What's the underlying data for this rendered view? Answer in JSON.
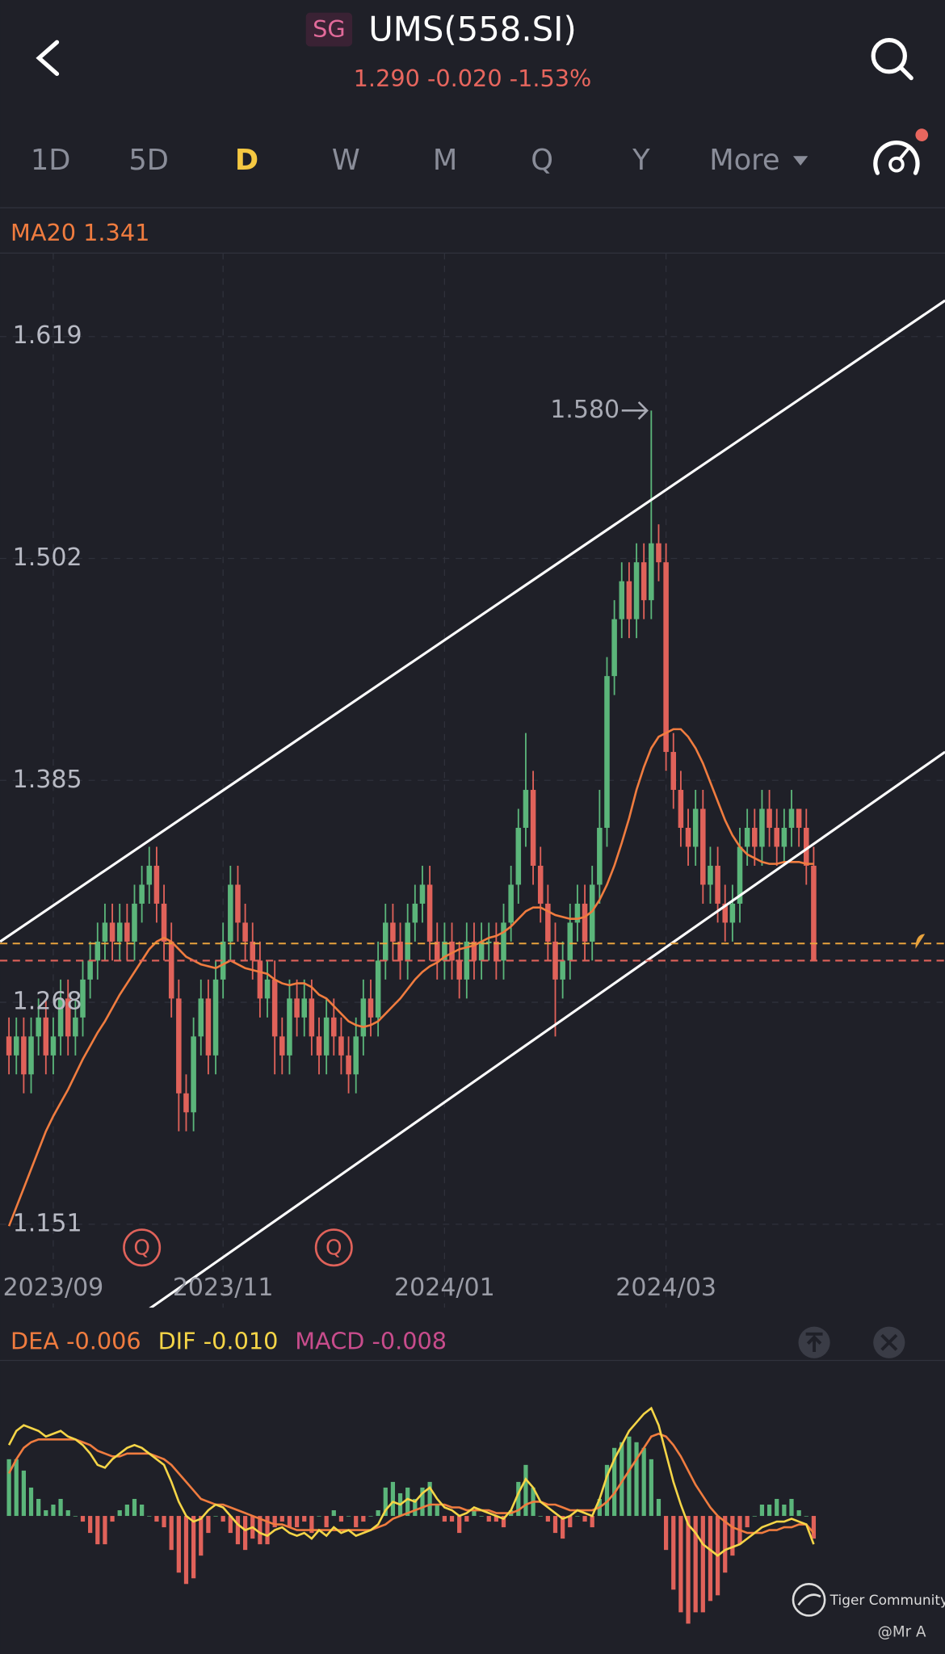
{
  "header": {
    "badge": "SG",
    "title": "UMS(558.SI)",
    "quote": "1.290 -0.020 -1.53%"
  },
  "tabs": [
    "1D",
    "5D",
    "D",
    "W",
    "M",
    "Q",
    "Y",
    "More"
  ],
  "active_tab": 2,
  "chart_data": [
    {
      "type": "candlestick",
      "indicator": "MA20 1.341",
      "up_color": "#5bb57a",
      "down_color": "#e0625a",
      "ylim": [
        1.107,
        1.663
      ],
      "yticks": [
        1.151,
        1.268,
        1.385,
        1.502,
        1.619
      ],
      "grid": true,
      "categories": [
        null,
        null,
        null,
        null,
        null,
        null,
        "2023/09",
        null,
        null,
        null,
        null,
        null,
        null,
        null,
        null,
        null,
        null,
        null,
        null,
        null,
        null,
        null,
        null,
        null,
        null,
        null,
        null,
        null,
        null,
        "2023/11",
        null,
        null,
        null,
        null,
        null,
        null,
        null,
        null,
        null,
        null,
        null,
        null,
        null,
        null,
        null,
        null,
        null,
        null,
        null,
        null,
        null,
        null,
        null,
        null,
        null,
        null,
        null,
        null,
        null,
        "2024/01",
        null,
        null,
        null,
        null,
        null,
        null,
        null,
        null,
        null,
        null,
        null,
        null,
        null,
        null,
        null,
        null,
        null,
        null,
        null,
        null,
        null,
        null,
        null,
        null,
        null,
        null,
        null,
        null,
        null,
        "2024/03",
        null,
        null,
        null,
        null,
        null,
        null,
        null,
        null,
        null,
        null,
        null,
        null,
        null,
        null,
        null,
        null,
        null,
        null,
        null,
        null
      ],
      "open": [
        1.25,
        1.24,
        1.25,
        1.23,
        1.25,
        1.26,
        1.24,
        1.25,
        1.27,
        1.25,
        1.26,
        1.28,
        1.29,
        1.3,
        1.31,
        1.3,
        1.31,
        1.3,
        1.32,
        1.33,
        1.34,
        1.32,
        1.3,
        1.27,
        1.22,
        1.21,
        1.25,
        1.27,
        1.24,
        1.28,
        1.3,
        1.33,
        1.31,
        1.3,
        1.29,
        1.27,
        1.28,
        1.25,
        1.24,
        1.27,
        1.26,
        1.27,
        1.25,
        1.24,
        1.26,
        1.25,
        1.24,
        1.23,
        1.25,
        1.27,
        1.26,
        1.29,
        1.31,
        1.3,
        1.29,
        1.31,
        1.32,
        1.33,
        1.3,
        1.29,
        1.3,
        1.29,
        1.28,
        1.3,
        1.29,
        1.3,
        1.3,
        1.29,
        1.31,
        1.33,
        1.36,
        1.38,
        1.34,
        1.32,
        1.3,
        1.28,
        1.29,
        1.31,
        1.32,
        1.3,
        1.33,
        1.36,
        1.44,
        1.47,
        1.49,
        1.47,
        1.5,
        1.48,
        1.51,
        1.5,
        1.4,
        1.38,
        1.36,
        1.35,
        1.37,
        1.33,
        1.34,
        1.32,
        1.31,
        1.32,
        1.35,
        1.36,
        1.35,
        1.37,
        1.36,
        1.35,
        1.36,
        1.37,
        1.36,
        1.34
      ],
      "high": [
        1.26,
        1.26,
        1.26,
        1.26,
        1.27,
        1.27,
        1.26,
        1.28,
        1.28,
        1.27,
        1.29,
        1.3,
        1.31,
        1.32,
        1.32,
        1.32,
        1.32,
        1.33,
        1.34,
        1.35,
        1.35,
        1.33,
        1.31,
        1.28,
        1.23,
        1.26,
        1.28,
        1.28,
        1.29,
        1.31,
        1.34,
        1.34,
        1.32,
        1.31,
        1.3,
        1.29,
        1.29,
        1.26,
        1.28,
        1.28,
        1.28,
        1.28,
        1.26,
        1.27,
        1.27,
        1.26,
        1.25,
        1.26,
        1.28,
        1.28,
        1.3,
        1.32,
        1.32,
        1.31,
        1.32,
        1.33,
        1.34,
        1.34,
        1.31,
        1.31,
        1.31,
        1.3,
        1.31,
        1.31,
        1.31,
        1.31,
        1.31,
        1.32,
        1.34,
        1.37,
        1.41,
        1.39,
        1.35,
        1.33,
        1.31,
        1.3,
        1.32,
        1.33,
        1.33,
        1.34,
        1.38,
        1.45,
        1.48,
        1.5,
        1.5,
        1.51,
        1.51,
        1.58,
        1.52,
        1.51,
        1.41,
        1.39,
        1.37,
        1.38,
        1.38,
        1.35,
        1.35,
        1.33,
        1.33,
        1.36,
        1.37,
        1.37,
        1.38,
        1.38,
        1.37,
        1.37,
        1.38,
        1.37,
        1.37,
        1.35
      ],
      "low": [
        1.23,
        1.23,
        1.22,
        1.22,
        1.24,
        1.23,
        1.23,
        1.24,
        1.24,
        1.24,
        1.25,
        1.27,
        1.28,
        1.29,
        1.29,
        1.29,
        1.29,
        1.29,
        1.31,
        1.32,
        1.31,
        1.29,
        1.26,
        1.2,
        1.2,
        1.2,
        1.24,
        1.23,
        1.23,
        1.27,
        1.29,
        1.3,
        1.29,
        1.28,
        1.26,
        1.26,
        1.23,
        1.23,
        1.23,
        1.25,
        1.25,
        1.24,
        1.23,
        1.23,
        1.24,
        1.23,
        1.22,
        1.22,
        1.24,
        1.25,
        1.25,
        1.28,
        1.29,
        1.28,
        1.28,
        1.3,
        1.31,
        1.29,
        1.28,
        1.28,
        1.28,
        1.27,
        1.27,
        1.28,
        1.28,
        1.29,
        1.28,
        1.28,
        1.3,
        1.32,
        1.35,
        1.33,
        1.31,
        1.29,
        1.25,
        1.27,
        1.28,
        1.3,
        1.29,
        1.29,
        1.32,
        1.35,
        1.43,
        1.46,
        1.46,
        1.46,
        1.47,
        1.47,
        1.49,
        1.39,
        1.37,
        1.35,
        1.34,
        1.34,
        1.32,
        1.32,
        1.31,
        1.3,
        1.3,
        1.31,
        1.34,
        1.34,
        1.34,
        1.35,
        1.34,
        1.34,
        1.35,
        1.35,
        1.33,
        1.29
      ],
      "close": [
        1.24,
        1.25,
        1.23,
        1.25,
        1.26,
        1.24,
        1.25,
        1.27,
        1.25,
        1.26,
        1.28,
        1.29,
        1.3,
        1.31,
        1.3,
        1.31,
        1.3,
        1.32,
        1.33,
        1.34,
        1.32,
        1.3,
        1.27,
        1.22,
        1.21,
        1.25,
        1.27,
        1.24,
        1.28,
        1.3,
        1.33,
        1.31,
        1.3,
        1.29,
        1.27,
        1.28,
        1.25,
        1.24,
        1.27,
        1.26,
        1.27,
        1.25,
        1.24,
        1.26,
        1.25,
        1.24,
        1.23,
        1.25,
        1.27,
        1.26,
        1.29,
        1.31,
        1.3,
        1.29,
        1.31,
        1.32,
        1.33,
        1.3,
        1.29,
        1.3,
        1.29,
        1.28,
        1.3,
        1.29,
        1.3,
        1.3,
        1.29,
        1.31,
        1.33,
        1.36,
        1.38,
        1.34,
        1.32,
        1.3,
        1.28,
        1.29,
        1.31,
        1.32,
        1.3,
        1.33,
        1.36,
        1.44,
        1.47,
        1.49,
        1.47,
        1.5,
        1.48,
        1.51,
        1.5,
        1.4,
        1.38,
        1.36,
        1.35,
        1.37,
        1.33,
        1.34,
        1.32,
        1.31,
        1.32,
        1.35,
        1.36,
        1.35,
        1.37,
        1.36,
        1.35,
        1.36,
        1.37,
        1.36,
        1.34,
        1.29
      ],
      "ma20": {
        "color": "#f07c3f",
        "values": [
          1.15,
          1.16,
          1.17,
          1.18,
          1.19,
          1.2,
          1.208,
          1.215,
          1.222,
          1.23,
          1.238,
          1.245,
          1.252,
          1.258,
          1.265,
          1.272,
          1.278,
          1.284,
          1.29,
          1.296,
          1.3,
          1.302,
          1.3,
          1.296,
          1.292,
          1.29,
          1.288,
          1.287,
          1.286,
          1.288,
          1.29,
          1.288,
          1.286,
          1.285,
          1.284,
          1.283,
          1.28,
          1.278,
          1.277,
          1.278,
          1.278,
          1.276,
          1.272,
          1.27,
          1.266,
          1.262,
          1.258,
          1.256,
          1.255,
          1.256,
          1.258,
          1.262,
          1.266,
          1.27,
          1.275,
          1.28,
          1.284,
          1.287,
          1.289,
          1.292,
          1.294,
          1.296,
          1.297,
          1.298,
          1.3,
          1.302,
          1.303,
          1.305,
          1.308,
          1.312,
          1.316,
          1.318,
          1.318,
          1.316,
          1.314,
          1.313,
          1.312,
          1.312,
          1.313,
          1.316,
          1.322,
          1.33,
          1.34,
          1.352,
          1.365,
          1.38,
          1.392,
          1.402,
          1.408,
          1.41,
          1.412,
          1.412,
          1.408,
          1.402,
          1.394,
          1.384,
          1.374,
          1.364,
          1.356,
          1.35,
          1.346,
          1.344,
          1.342,
          1.341,
          1.341,
          1.342,
          1.342,
          1.342,
          1.341,
          1.341
        ]
      },
      "max_label": {
        "index": 87,
        "value": 1.58,
        "label": "1.580"
      },
      "trendlines": [
        {
          "color": "#ffffff",
          "points": [
            [
              -1.2,
              1.3
            ],
            [
              126.8,
              1.638
            ]
          ]
        },
        {
          "color": "#ffffff",
          "points": [
            [
              17.4,
              1.102
            ],
            [
              126.8,
              1.4
            ]
          ]
        }
      ],
      "price_lines": [
        {
          "value": 1.299,
          "color": "#e8a33d"
        },
        {
          "value": 1.29,
          "color": "#e0625a"
        }
      ],
      "markers": [
        {
          "index": 18,
          "label": "Q"
        },
        {
          "index": 44,
          "label": "Q"
        }
      ]
    },
    {
      "type": "macd",
      "ylim": [
        -0.04,
        0.053
      ],
      "up_color": "#5bb57a",
      "down_color": "#e0625a",
      "series": [
        {
          "name": "DEA -0.006",
          "color": "#f07c3f",
          "style": "line",
          "values": [
            0.015,
            0.02,
            0.024,
            0.026,
            0.027,
            0.027,
            0.027,
            0.027,
            0.027,
            0.027,
            0.026,
            0.025,
            0.023,
            0.022,
            0.021,
            0.021,
            0.022,
            0.022,
            0.022,
            0.022,
            0.021,
            0.02,
            0.018,
            0.015,
            0.012,
            0.009,
            0.006,
            0.005,
            0.004,
            0.004,
            0.003,
            0.002,
            0.001,
            0.0,
            -0.001,
            -0.002,
            -0.003,
            -0.003,
            -0.004,
            -0.005,
            -0.005,
            -0.005,
            -0.005,
            -0.005,
            -0.005,
            -0.005,
            -0.005,
            -0.005,
            -0.005,
            -0.005,
            -0.004,
            -0.003,
            -0.001,
            0.0,
            0.001,
            0.002,
            0.003,
            0.004,
            0.004,
            0.004,
            0.003,
            0.003,
            0.002,
            0.002,
            0.002,
            0.002,
            0.001,
            0.001,
            0.001,
            0.002,
            0.004,
            0.005,
            0.005,
            0.004,
            0.004,
            0.003,
            0.002,
            0.002,
            0.002,
            0.002,
            0.003,
            0.005,
            0.008,
            0.012,
            0.016,
            0.02,
            0.024,
            0.028,
            0.029,
            0.028,
            0.025,
            0.021,
            0.016,
            0.011,
            0.007,
            0.003,
            0.0,
            -0.002,
            -0.004,
            -0.005,
            -0.006,
            -0.006,
            -0.006,
            -0.005,
            -0.005,
            -0.004,
            -0.004,
            -0.003,
            -0.003,
            -0.006
          ]
        },
        {
          "name": "DIF -0.010",
          "color": "#f5d547",
          "style": "line",
          "values": [
            0.025,
            0.03,
            0.032,
            0.031,
            0.03,
            0.028,
            0.029,
            0.03,
            0.028,
            0.027,
            0.025,
            0.022,
            0.018,
            0.017,
            0.02,
            0.022,
            0.024,
            0.025,
            0.024,
            0.022,
            0.02,
            0.018,
            0.012,
            0.005,
            0.0,
            -0.002,
            -0.001,
            0.002,
            0.004,
            0.003,
            0.0,
            -0.003,
            -0.005,
            -0.004,
            -0.006,
            -0.007,
            -0.005,
            -0.004,
            -0.006,
            -0.007,
            -0.006,
            -0.008,
            -0.005,
            -0.007,
            -0.004,
            -0.006,
            -0.005,
            -0.007,
            -0.006,
            -0.005,
            -0.003,
            0.002,
            0.005,
            0.004,
            0.006,
            0.005,
            0.008,
            0.01,
            0.006,
            0.003,
            0.002,
            0.0,
            0.001,
            0.003,
            0.002,
            0.001,
            0.0,
            -0.001,
            0.002,
            0.008,
            0.013,
            0.01,
            0.005,
            0.003,
            0.001,
            -0.001,
            0.0,
            0.002,
            0.001,
            0.0,
            0.006,
            0.014,
            0.02,
            0.025,
            0.03,
            0.033,
            0.036,
            0.038,
            0.032,
            0.022,
            0.012,
            0.004,
            -0.003,
            -0.006,
            -0.01,
            -0.012,
            -0.014,
            -0.012,
            -0.011,
            -0.01,
            -0.008,
            -0.006,
            -0.004,
            -0.003,
            -0.002,
            -0.002,
            -0.001,
            -0.002,
            -0.003,
            -0.01
          ]
        },
        {
          "name": "MACD -0.008",
          "color": "#c84c8c",
          "style": "bar",
          "values": [
            0.02,
            0.02,
            0.016,
            0.01,
            0.006,
            0.002,
            0.004,
            0.006,
            0.002,
            0.0,
            -0.002,
            -0.006,
            -0.01,
            -0.01,
            -0.002,
            0.002,
            0.004,
            0.006,
            0.004,
            0.0,
            -0.002,
            -0.004,
            -0.012,
            -0.02,
            -0.024,
            -0.022,
            -0.014,
            -0.006,
            0.0,
            -0.002,
            -0.006,
            -0.01,
            -0.012,
            -0.008,
            -0.01,
            -0.01,
            -0.004,
            -0.002,
            -0.004,
            -0.004,
            -0.002,
            -0.006,
            0.0,
            -0.004,
            0.002,
            -0.002,
            0.0,
            -0.004,
            -0.002,
            0.0,
            0.002,
            0.01,
            0.012,
            0.008,
            0.01,
            0.006,
            0.01,
            0.012,
            0.004,
            -0.002,
            -0.002,
            -0.006,
            -0.002,
            0.002,
            0.0,
            -0.002,
            -0.002,
            -0.004,
            0.002,
            0.012,
            0.018,
            0.01,
            0.0,
            -0.002,
            -0.006,
            -0.008,
            -0.004,
            0.0,
            -0.002,
            -0.004,
            0.006,
            0.018,
            0.024,
            0.026,
            0.028,
            0.026,
            0.024,
            0.02,
            0.006,
            -0.012,
            -0.026,
            -0.034,
            -0.038,
            -0.034,
            -0.034,
            -0.03,
            -0.028,
            -0.02,
            -0.014,
            -0.01,
            -0.004,
            0.0,
            0.004,
            0.004,
            0.006,
            0.004,
            0.006,
            0.002,
            0.0,
            -0.008
          ]
        }
      ]
    }
  ],
  "footer": {
    "brand": "Tiger Community",
    "handle": "@Mr A"
  }
}
